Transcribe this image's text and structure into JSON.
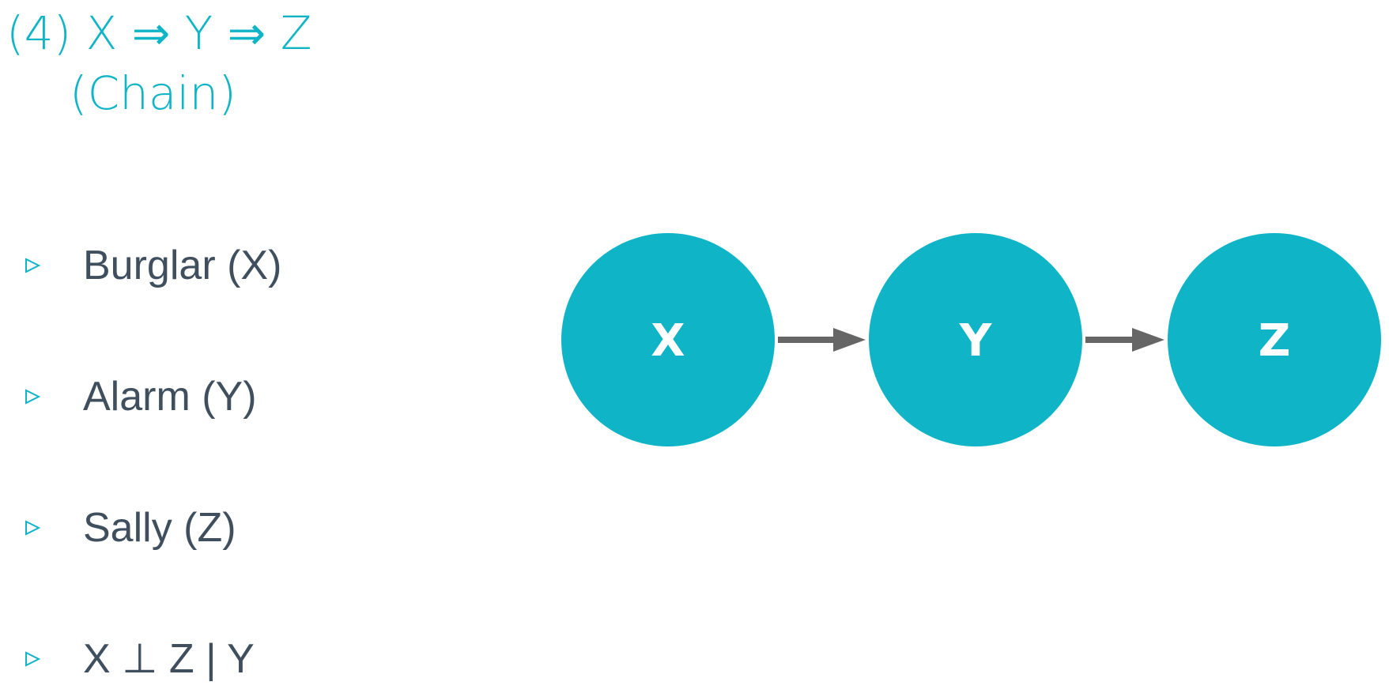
{
  "title": {
    "line1": "(4) X ⇒ Y ⇒ Z",
    "line2": "(Chain)"
  },
  "bullets": [
    {
      "text": "Burglar (X)"
    },
    {
      "text": "Alarm (Y)"
    },
    {
      "text": "Sally (Z)"
    },
    {
      "text": "X ⊥ Z | Y"
    }
  ],
  "diagram": {
    "nodes": [
      {
        "id": "X",
        "label": "X"
      },
      {
        "id": "Y",
        "label": "Y"
      },
      {
        "id": "Z",
        "label": "Z"
      }
    ],
    "edges": [
      {
        "from": "X",
        "to": "Y"
      },
      {
        "from": "Y",
        "to": "Z"
      }
    ]
  },
  "colors": {
    "accent": "#0fb5c6",
    "text": "#3f4f5e",
    "arrow": "#666666",
    "node_label": "#ffffff"
  }
}
